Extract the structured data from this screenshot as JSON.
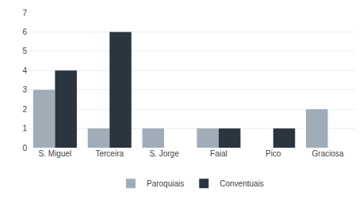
{
  "chart_data": {
    "type": "bar",
    "categories": [
      "S. Miguel",
      "Terceira",
      "S. Jorge",
      "Faial",
      "Pico",
      "Graciosa"
    ],
    "series": [
      {
        "name": "Paroquiais",
        "color": "#a0adb8",
        "values": [
          3,
          1,
          1,
          1,
          0,
          2
        ]
      },
      {
        "name": "Conventuais",
        "color": "#2a3540",
        "values": [
          4,
          6,
          0,
          1,
          1,
          0
        ]
      }
    ],
    "ylim": [
      0,
      7
    ],
    "yticks": [
      0,
      1,
      2,
      3,
      4,
      5,
      6,
      7
    ],
    "grid": true,
    "legend": "bottom"
  }
}
